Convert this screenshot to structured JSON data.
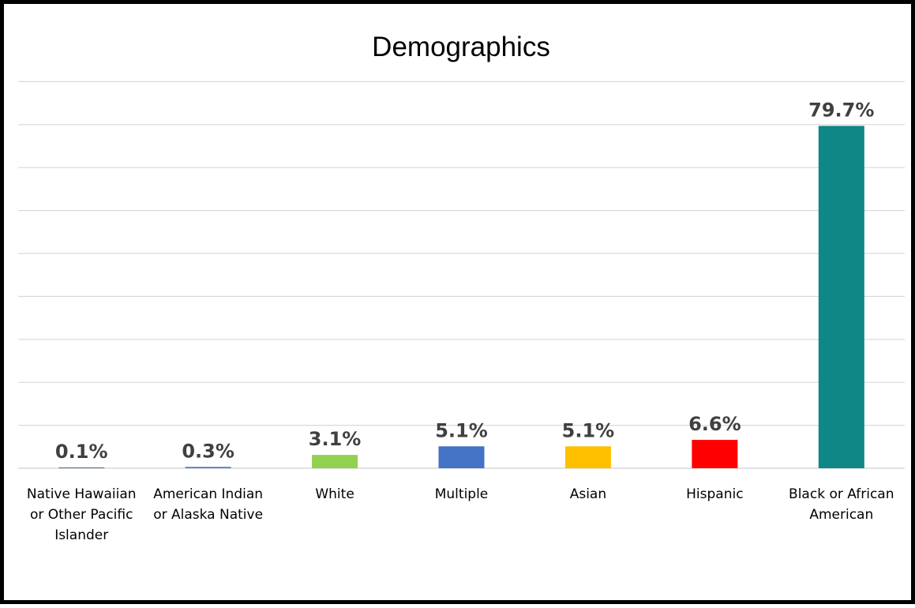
{
  "chart_data": {
    "type": "bar",
    "title": "Demographics",
    "xlabel": "",
    "ylabel": "",
    "ylim": [
      0,
      90
    ],
    "grid": true,
    "legend": "none",
    "categories": [
      "Native Hawaiian or Other Pacific Islander",
      "American Indian or Alaska Native",
      "White",
      "Multiple",
      "Asian",
      "Hispanic",
      "Black or African American"
    ],
    "values": [
      0.1,
      0.3,
      3.1,
      5.1,
      5.1,
      6.6,
      79.7
    ],
    "data_labels": [
      "0.1%",
      "0.3%",
      "3.1%",
      "5.1%",
      "5.1%",
      "6.6%",
      "79.7%"
    ],
    "colors": [
      "#1f4e79",
      "#4472c4",
      "#92d050",
      "#4472c4",
      "#ffc000",
      "#ff0000",
      "#0e8786"
    ]
  }
}
